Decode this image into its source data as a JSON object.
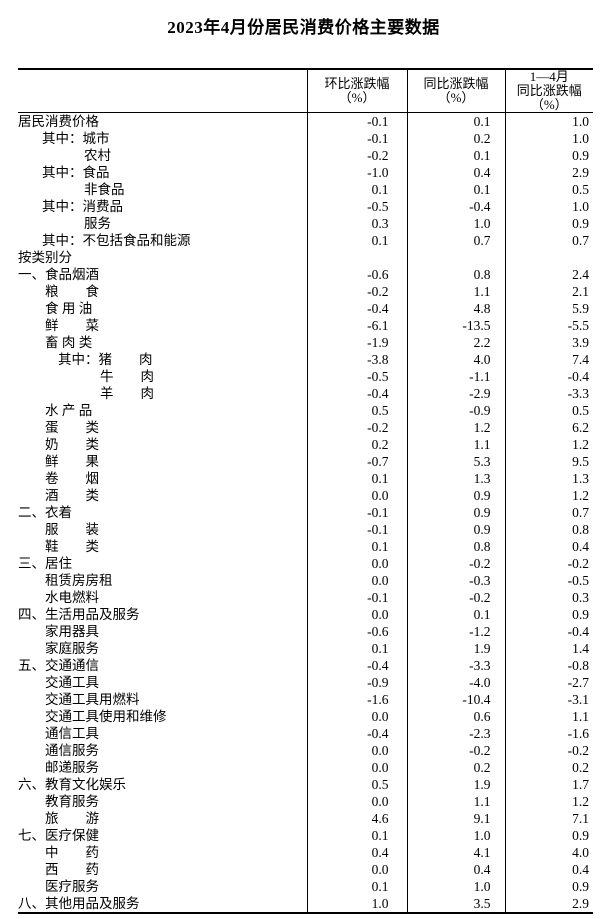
{
  "title": "2023年4月份居民消费价格主要数据",
  "colors": {
    "text": "#000000",
    "background": "#ffffff",
    "border": "#000000"
  },
  "table": {
    "columns": [
      {
        "lines": [
          "环比涨跌幅",
          "（%）"
        ]
      },
      {
        "lines": [
          "同比涨跌幅",
          "（%）"
        ]
      },
      {
        "lines": [
          "1—4月",
          "同比涨跌幅",
          "（%）"
        ]
      }
    ],
    "rows": [
      {
        "label": "居民消费价格",
        "indent": 0,
        "values": [
          "-0.1",
          "0.1",
          "1.0"
        ]
      },
      {
        "label": "其中：城市",
        "indent": 1,
        "values": [
          "-0.1",
          "0.2",
          "1.0"
        ]
      },
      {
        "label": "农村",
        "indent": 2,
        "values": [
          "-0.2",
          "0.1",
          "0.9"
        ]
      },
      {
        "label": "其中：食品",
        "indent": 1,
        "values": [
          "-1.0",
          "0.4",
          "2.9"
        ]
      },
      {
        "label": "非食品",
        "indent": 2,
        "values": [
          "0.1",
          "0.1",
          "0.5"
        ]
      },
      {
        "label": "其中：消费品",
        "indent": 1,
        "values": [
          "-0.5",
          "-0.4",
          "1.0"
        ]
      },
      {
        "label": "服务",
        "indent": 2,
        "values": [
          "0.3",
          "1.0",
          "0.9"
        ]
      },
      {
        "label": "其中：不包括食品和能源",
        "indent": 1,
        "values": [
          "0.1",
          "0.7",
          "0.7"
        ]
      },
      {
        "label": "按类别分",
        "indent": 0,
        "values": [
          "",
          "",
          ""
        ]
      },
      {
        "label": "一、食品烟酒",
        "indent": 0,
        "values": [
          "-0.6",
          "0.8",
          "2.4"
        ]
      },
      {
        "label": "粮　　食",
        "indent": 3,
        "values": [
          "-0.2",
          "1.1",
          "2.1"
        ]
      },
      {
        "label": "食 用 油",
        "indent": 3,
        "values": [
          "-0.4",
          "4.8",
          "5.9"
        ]
      },
      {
        "label": "鲜　　菜",
        "indent": 3,
        "values": [
          "-6.1",
          "-13.5",
          "-5.5"
        ]
      },
      {
        "label": "畜 肉 类",
        "indent": 3,
        "values": [
          "-1.9",
          "2.2",
          "3.9"
        ]
      },
      {
        "label": "其中：猪　　肉",
        "indent": 4,
        "values": [
          "-3.8",
          "4.0",
          "7.4"
        ]
      },
      {
        "label": "牛　　肉",
        "indent": 5,
        "values": [
          "-0.5",
          "-1.1",
          "-0.4"
        ]
      },
      {
        "label": "羊　　肉",
        "indent": 5,
        "values": [
          "-0.4",
          "-2.9",
          "-3.3"
        ]
      },
      {
        "label": "水 产 品",
        "indent": 3,
        "values": [
          "0.5",
          "-0.9",
          "0.5"
        ]
      },
      {
        "label": "蛋　　类",
        "indent": 3,
        "values": [
          "-0.2",
          "1.2",
          "6.2"
        ]
      },
      {
        "label": "奶　　类",
        "indent": 3,
        "values": [
          "0.2",
          "1.1",
          "1.2"
        ]
      },
      {
        "label": "鲜　　果",
        "indent": 3,
        "values": [
          "-0.7",
          "5.3",
          "9.5"
        ]
      },
      {
        "label": "卷　　烟",
        "indent": 3,
        "values": [
          "0.1",
          "1.3",
          "1.3"
        ]
      },
      {
        "label": "酒　　类",
        "indent": 3,
        "values": [
          "0.0",
          "0.9",
          "1.2"
        ]
      },
      {
        "label": "二、衣着",
        "indent": 0,
        "values": [
          "-0.1",
          "0.9",
          "0.7"
        ]
      },
      {
        "label": "服　　装",
        "indent": 3,
        "values": [
          "-0.1",
          "0.9",
          "0.8"
        ]
      },
      {
        "label": "鞋　　类",
        "indent": 3,
        "values": [
          "0.1",
          "0.8",
          "0.4"
        ]
      },
      {
        "label": "三、居住",
        "indent": 0,
        "values": [
          "0.0",
          "-0.2",
          "-0.2"
        ]
      },
      {
        "label": "租赁房房租",
        "indent": 3,
        "values": [
          "0.0",
          "-0.3",
          "-0.5"
        ]
      },
      {
        "label": "水电燃料",
        "indent": 3,
        "values": [
          "-0.1",
          "-0.2",
          "0.3"
        ]
      },
      {
        "label": "四、生活用品及服务",
        "indent": 0,
        "values": [
          "0.0",
          "0.1",
          "0.9"
        ]
      },
      {
        "label": "家用器具",
        "indent": 3,
        "values": [
          "-0.6",
          "-1.2",
          "-0.4"
        ]
      },
      {
        "label": "家庭服务",
        "indent": 3,
        "values": [
          "0.1",
          "1.9",
          "1.4"
        ]
      },
      {
        "label": "五、交通通信",
        "indent": 0,
        "values": [
          "-0.4",
          "-3.3",
          "-0.8"
        ]
      },
      {
        "label": "交通工具",
        "indent": 3,
        "values": [
          "-0.9",
          "-4.0",
          "-2.7"
        ]
      },
      {
        "label": "交通工具用燃料",
        "indent": 3,
        "values": [
          "-1.6",
          "-10.4",
          "-3.1"
        ]
      },
      {
        "label": "交通工具使用和维修",
        "indent": 3,
        "values": [
          "0.0",
          "0.6",
          "1.1"
        ]
      },
      {
        "label": "通信工具",
        "indent": 3,
        "values": [
          "-0.4",
          "-2.3",
          "-1.6"
        ]
      },
      {
        "label": "通信服务",
        "indent": 3,
        "values": [
          "0.0",
          "-0.2",
          "-0.2"
        ]
      },
      {
        "label": "邮递服务",
        "indent": 3,
        "values": [
          "0.0",
          "0.2",
          "0.2"
        ]
      },
      {
        "label": "六、教育文化娱乐",
        "indent": 0,
        "values": [
          "0.5",
          "1.9",
          "1.7"
        ]
      },
      {
        "label": "教育服务",
        "indent": 3,
        "values": [
          "0.0",
          "1.1",
          "1.2"
        ]
      },
      {
        "label": "旅　　游",
        "indent": 3,
        "values": [
          "4.6",
          "9.1",
          "7.1"
        ]
      },
      {
        "label": "七、医疗保健",
        "indent": 0,
        "values": [
          "0.1",
          "1.0",
          "0.9"
        ]
      },
      {
        "label": "中　　药",
        "indent": 3,
        "values": [
          "0.4",
          "4.1",
          "4.0"
        ]
      },
      {
        "label": "西　　药",
        "indent": 3,
        "values": [
          "0.0",
          "0.4",
          "0.4"
        ]
      },
      {
        "label": "医疗服务",
        "indent": 3,
        "values": [
          "0.1",
          "1.0",
          "0.9"
        ]
      },
      {
        "label": "八、其他用品及服务",
        "indent": 0,
        "values": [
          "1.0",
          "3.5",
          "2.9"
        ]
      }
    ]
  }
}
